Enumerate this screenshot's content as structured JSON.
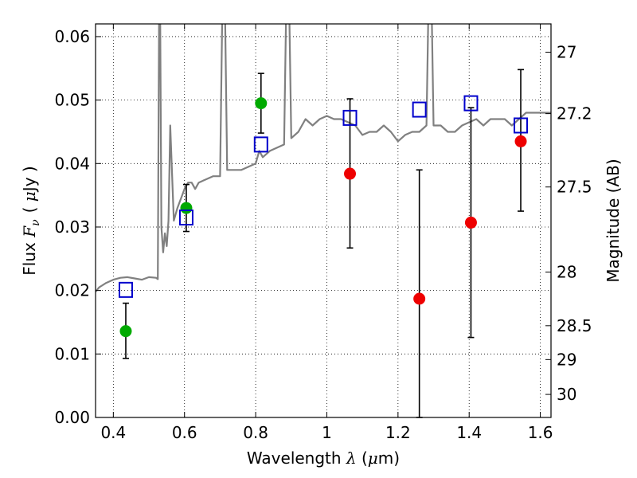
{
  "chart_data": {
    "type": "scatter",
    "title": "",
    "xlabel": "Wavelength  λ (μm)",
    "ylabel": "Flux  F_ν  ( μJy )",
    "ylabel_parts": {
      "a": "Flux ",
      "b": "F",
      "c": "ν",
      "d": "( ",
      "e": "μ",
      "f": "Jy )"
    },
    "xlabel_parts": {
      "a": "Wavelength ",
      "b": "λ",
      "c": " (",
      "d": "μ",
      "e": "m)"
    },
    "y2label": "Magnitude (AB)",
    "xlim": [
      0.35,
      1.63
    ],
    "ylim": [
      0.0,
      0.062
    ],
    "grid": true,
    "x_ticks": [
      "0.4",
      "0.6",
      "0.8",
      "1",
      "1.2",
      "1.4",
      "1.6"
    ],
    "x_tick_values": [
      0.4,
      0.6,
      0.8,
      1.0,
      1.2,
      1.4,
      1.6
    ],
    "y_ticks": [
      "0.00",
      "0.01",
      "0.02",
      "0.03",
      "0.04",
      "0.05",
      "0.06"
    ],
    "y_tick_values": [
      0,
      0.01,
      0.02,
      0.03,
      0.04,
      0.05,
      0.06
    ],
    "y2_ticks": [
      "27",
      "27.2",
      "27.5",
      "28",
      "28.5",
      "29",
      "30"
    ],
    "y2_tick_values": [
      27,
      27.2,
      27.5,
      28,
      28.5,
      29,
      30
    ],
    "series": [
      {
        "name": "",
        "kind": "line",
        "color": "#808080",
        "x": [
          0.35,
          0.36,
          0.38,
          0.4,
          0.42,
          0.44,
          0.46,
          0.48,
          0.5,
          0.52,
          0.525,
          0.53,
          0.535,
          0.54,
          0.545,
          0.55,
          0.555,
          0.56,
          0.57,
          0.58,
          0.59,
          0.6,
          0.61,
          0.62,
          0.63,
          0.64,
          0.66,
          0.68,
          0.7,
          0.71,
          0.72,
          0.74,
          0.76,
          0.78,
          0.8,
          0.81,
          0.82,
          0.84,
          0.86,
          0.88,
          0.89,
          0.9,
          0.92,
          0.94,
          0.96,
          0.98,
          1.0,
          1.02,
          1.04,
          1.06,
          1.08,
          1.1,
          1.12,
          1.14,
          1.16,
          1.18,
          1.2,
          1.22,
          1.24,
          1.26,
          1.28,
          1.29,
          1.3,
          1.32,
          1.34,
          1.36,
          1.38,
          1.4,
          1.42,
          1.44,
          1.46,
          1.48,
          1.5,
          1.52,
          1.54,
          1.56,
          1.58,
          1.6,
          1.63
        ],
        "y": [
          0.0198,
          0.0205,
          0.0212,
          0.0217,
          0.022,
          0.0221,
          0.0219,
          0.0217,
          0.0221,
          0.022,
          0.0218,
          0.08,
          0.03,
          0.026,
          0.029,
          0.027,
          0.031,
          0.046,
          0.031,
          0.033,
          0.0345,
          0.036,
          0.037,
          0.037,
          0.036,
          0.037,
          0.0375,
          0.038,
          0.038,
          0.08,
          0.039,
          0.039,
          0.039,
          0.0395,
          0.04,
          0.042,
          0.041,
          0.042,
          0.0425,
          0.043,
          0.08,
          0.044,
          0.045,
          0.047,
          0.046,
          0.047,
          0.0475,
          0.047,
          0.047,
          0.0465,
          0.046,
          0.0445,
          0.045,
          0.045,
          0.046,
          0.045,
          0.0435,
          0.0445,
          0.045,
          0.045,
          0.046,
          0.08,
          0.046,
          0.046,
          0.045,
          0.045,
          0.046,
          0.0465,
          0.047,
          0.046,
          0.047,
          0.047,
          0.047,
          0.046,
          0.047,
          0.048,
          0.048,
          0.048,
          0.048
        ]
      },
      {
        "name": "",
        "kind": "points",
        "color": "#00aa00",
        "x": [
          0.435,
          0.605,
          0.815
        ],
        "y": [
          0.0136,
          0.033,
          0.0495
        ],
        "yerr_low": [
          0.0093,
          0.0293,
          0.0448
        ],
        "yerr_high": [
          0.018,
          0.0367,
          0.0542
        ]
      },
      {
        "name": "",
        "kind": "points",
        "color": "#ee0000",
        "x": [
          1.065,
          1.26,
          1.405,
          1.545
        ],
        "y": [
          0.0384,
          0.0187,
          0.0307,
          0.0435
        ],
        "yerr_low": [
          0.0267,
          0.0,
          0.0126,
          0.0325
        ],
        "yerr_high": [
          0.0502,
          0.039,
          0.0488,
          0.0548
        ]
      },
      {
        "name": "",
        "kind": "squares",
        "color": "#0000cc",
        "x": [
          0.435,
          0.605,
          0.815,
          1.065,
          1.26,
          1.405,
          1.545
        ],
        "y": [
          0.0201,
          0.0315,
          0.043,
          0.0472,
          0.0485,
          0.0495,
          0.046
        ]
      }
    ]
  }
}
